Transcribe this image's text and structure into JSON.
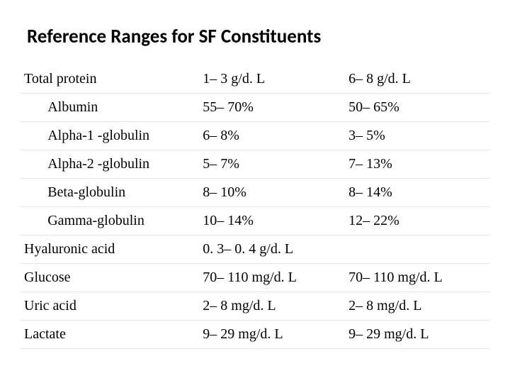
{
  "title": "Reference Ranges for SF Constituents",
  "table": {
    "columns": [
      "indent",
      "constituent",
      "range1",
      "range2"
    ],
    "rows": [
      {
        "indent": false,
        "constituent": "Total protein",
        "range1": "1– 3 g/d. L",
        "range2": "6– 8 g/d. L"
      },
      {
        "indent": true,
        "constituent": "Albumin",
        "range1": "55– 70%",
        "range2": "50– 65%"
      },
      {
        "indent": true,
        "constituent": "Alpha-1 -globulin",
        "range1": "6– 8%",
        "range2": "3– 5%"
      },
      {
        "indent": true,
        "constituent": "Alpha-2 -globulin",
        "range1": "5– 7%",
        "range2": "7– 13%"
      },
      {
        "indent": true,
        "constituent": "Beta-globulin",
        "range1": "8– 10%",
        "range2": "8– 14%"
      },
      {
        "indent": true,
        "constituent": "Gamma-globulin",
        "range1": "10– 14%",
        "range2": "12– 22%"
      },
      {
        "indent": false,
        "constituent": "Hyaluronic acid",
        "range1": "0. 3– 0. 4 g/d. L",
        "range2": ""
      },
      {
        "indent": false,
        "constituent": "Glucose",
        "range1": "70– 110 mg/d. L",
        "range2": "70– 110 mg/d. L"
      },
      {
        "indent": false,
        "constituent": "Uric acid",
        "range1": "2– 8 mg/d. L",
        "range2": "2– 8 mg/d. L"
      },
      {
        "indent": false,
        "constituent": "Lactate",
        "range1": "9– 29 mg/d. L",
        "range2": "9– 29 mg/d. L"
      }
    ],
    "row_border_color": "#e8e8e8",
    "title_fontsize": 27,
    "cell_fontsize": 20,
    "cell_font_family": "Times New Roman",
    "title_font_family": "Calibri"
  }
}
